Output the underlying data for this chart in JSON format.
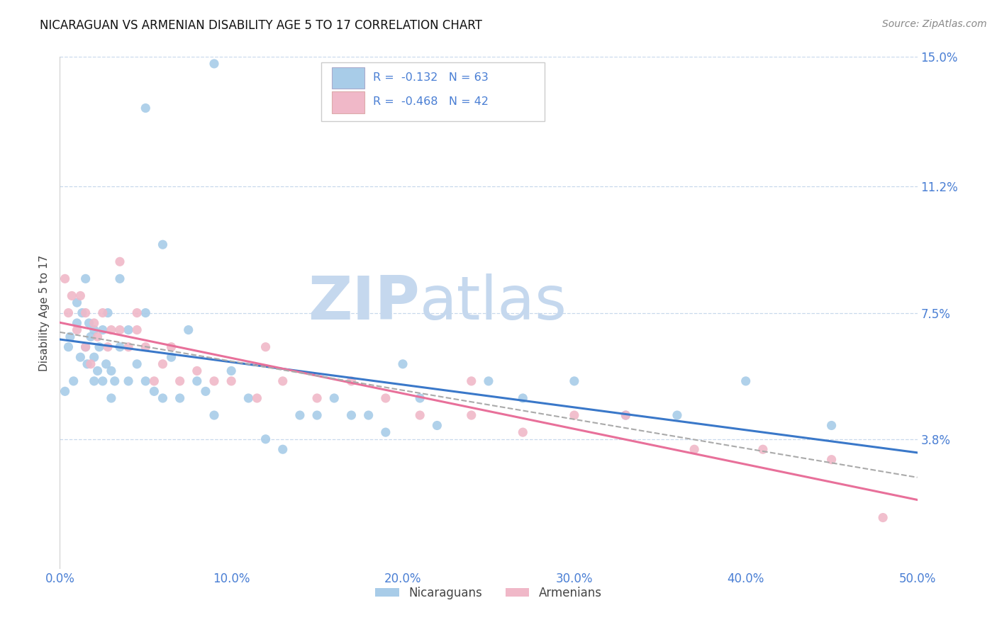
{
  "title": "NICARAGUAN VS ARMENIAN DISABILITY AGE 5 TO 17 CORRELATION CHART",
  "source_text": "Source: ZipAtlas.com",
  "ylabel": "Disability Age 5 to 17",
  "xlim": [
    0.0,
    50.0
  ],
  "ylim": [
    0.0,
    15.0
  ],
  "xticks": [
    0.0,
    10.0,
    20.0,
    30.0,
    40.0,
    50.0
  ],
  "xticklabels": [
    "0.0%",
    "10.0%",
    "20.0%",
    "30.0%",
    "40.0%",
    "50.0%"
  ],
  "yticks": [
    3.8,
    7.5,
    11.2,
    15.0
  ],
  "yticklabels": [
    "3.8%",
    "7.5%",
    "11.2%",
    "15.0%"
  ],
  "nic_color": "#a8cce8",
  "arm_color": "#f0b8c8",
  "nic_line_color": "#3a78c9",
  "arm_line_color": "#e8709a",
  "dashed_line_color": "#aaaaaa",
  "title_color": "#111111",
  "axis_label_color": "#444444",
  "tick_color": "#4a7fd4",
  "grid_color": "#c8d8ec",
  "watermark_zip_color": "#c5d8ee",
  "watermark_atlas_color": "#c5d8ee",
  "background_color": "#ffffff",
  "legend_r1": "R =  -0.132   N = 63",
  "legend_r2": "R =  -0.468   N = 42",
  "legend_text_color": "#4a7fd4",
  "legend_label_color": "#111111",
  "legend_nic_color": "#a8cce8",
  "legend_arm_color": "#f0b8c8",
  "nic_x": [
    0.3,
    0.5,
    0.6,
    0.8,
    1.0,
    1.0,
    1.2,
    1.3,
    1.5,
    1.5,
    1.6,
    1.7,
    1.8,
    2.0,
    2.0,
    2.0,
    2.2,
    2.3,
    2.5,
    2.5,
    2.7,
    2.8,
    3.0,
    3.0,
    3.2,
    3.5,
    3.5,
    4.0,
    4.0,
    4.5,
    5.0,
    5.0,
    5.5,
    6.0,
    6.5,
    7.0,
    7.5,
    8.0,
    8.5,
    9.0,
    10.0,
    11.0,
    12.0,
    13.0,
    14.0,
    16.0,
    18.0,
    20.0,
    22.0,
    25.0,
    27.0,
    30.0,
    33.0,
    36.0,
    40.0,
    45.0,
    5.0,
    6.0,
    9.0,
    15.0,
    17.0,
    19.0,
    21.0
  ],
  "nic_y": [
    5.2,
    6.5,
    6.8,
    5.5,
    7.2,
    7.8,
    6.2,
    7.5,
    6.5,
    8.5,
    6.0,
    7.2,
    6.8,
    5.5,
    6.2,
    7.0,
    5.8,
    6.5,
    5.5,
    7.0,
    6.0,
    7.5,
    5.0,
    5.8,
    5.5,
    6.5,
    8.5,
    7.0,
    5.5,
    6.0,
    7.5,
    5.5,
    5.2,
    9.5,
    6.2,
    5.0,
    7.0,
    5.5,
    5.2,
    4.5,
    5.8,
    5.0,
    3.8,
    3.5,
    4.5,
    5.0,
    4.5,
    6.0,
    4.2,
    5.5,
    5.0,
    5.5,
    4.5,
    4.5,
    5.5,
    4.2,
    13.5,
    5.0,
    14.8,
    4.5,
    4.5,
    4.0,
    5.0
  ],
  "arm_x": [
    0.3,
    0.5,
    0.7,
    1.0,
    1.2,
    1.5,
    1.5,
    1.8,
    2.0,
    2.2,
    2.5,
    2.8,
    3.0,
    3.5,
    4.0,
    4.5,
    5.0,
    5.5,
    6.0,
    6.5,
    7.0,
    8.0,
    9.0,
    10.0,
    11.5,
    13.0,
    15.0,
    17.0,
    19.0,
    21.0,
    24.0,
    27.0,
    30.0,
    33.0,
    37.0,
    41.0,
    45.0,
    48.0,
    3.5,
    4.5,
    12.0,
    24.0
  ],
  "arm_y": [
    8.5,
    7.5,
    8.0,
    7.0,
    8.0,
    7.5,
    6.5,
    6.0,
    7.2,
    6.8,
    7.5,
    6.5,
    7.0,
    7.0,
    6.5,
    7.0,
    6.5,
    5.5,
    6.0,
    6.5,
    5.5,
    5.8,
    5.5,
    5.5,
    5.0,
    5.5,
    5.0,
    5.5,
    5.0,
    4.5,
    4.5,
    4.0,
    4.5,
    4.5,
    3.5,
    3.5,
    3.2,
    1.5,
    9.0,
    7.5,
    6.5,
    5.5
  ]
}
